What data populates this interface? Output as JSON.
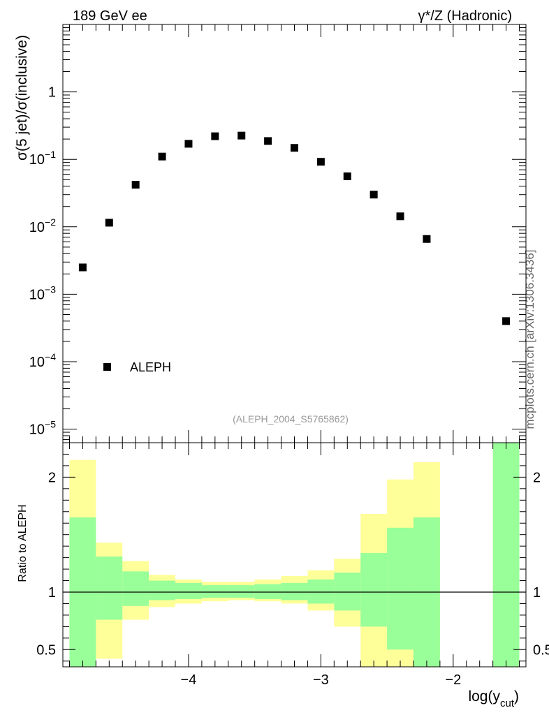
{
  "header": {
    "energy_label": "189 GeV ee",
    "process_label": "γ*/Z (Hadronic)"
  },
  "side_label": "mcplots.cern.ch [arXiv:1306.3436]",
  "chart_data": [
    {
      "type": "scatter",
      "panel": "main",
      "ylabel": "σ(5 jet)/σ(inclusive)",
      "yscale": "log",
      "ylim": [
        6.3e-06,
        10
      ],
      "xlim": [
        -4.95,
        -1.45
      ],
      "yticks": [
        {
          "value": 1,
          "base": "1",
          "exp": ""
        },
        {
          "value": 0.1,
          "base": "10",
          "exp": "−1"
        },
        {
          "value": 0.01,
          "base": "10",
          "exp": "−2"
        },
        {
          "value": 0.001,
          "base": "10",
          "exp": "−3"
        },
        {
          "value": 0.0001,
          "base": "10",
          "exp": "−4"
        },
        {
          "value": 1e-05,
          "base": "10",
          "exp": "−5"
        }
      ],
      "series": [
        {
          "name": "ALEPH",
          "marker": "square",
          "color": "#000000",
          "x": [
            -4.8,
            -4.6,
            -4.4,
            -4.2,
            -4.0,
            -3.8,
            -3.6,
            -3.4,
            -3.2,
            -3.0,
            -2.8,
            -2.6,
            -2.4,
            -2.2,
            -1.6
          ],
          "y": [
            0.0025,
            0.0115,
            0.042,
            0.11,
            0.17,
            0.22,
            0.225,
            0.187,
            0.148,
            0.092,
            0.056,
            0.03,
            0.0143,
            0.0066,
            0.0004
          ]
        }
      ],
      "legend": {
        "entries": [
          "ALEPH"
        ],
        "position": "bottom-left"
      },
      "annotation": "(ALEPH_2004_S5765862)"
    },
    {
      "type": "area",
      "panel": "ratio",
      "ylabel": "Ratio to ALEPH",
      "xlabel": "log(y",
      "xlabel_sub": "cut",
      "xlabel_close": ")",
      "ylim": [
        0.35,
        2.3
      ],
      "xlim": [
        -4.95,
        -1.45
      ],
      "yticks": [
        0.5,
        1,
        2
      ],
      "ytick_labels": [
        "0.5",
        "1",
        "2"
      ],
      "xticks": [
        -4,
        -3,
        -2
      ],
      "xtick_labels": [
        "−4",
        "−3",
        "−2"
      ],
      "reference_line": 1,
      "bin_edges": [
        -4.9,
        -4.7,
        -4.5,
        -4.3,
        -4.1,
        -3.9,
        -3.7,
        -3.5,
        -3.3,
        -3.1,
        -2.9,
        -2.7,
        -2.5,
        -2.3,
        -2.1,
        -1.7,
        -1.5
      ],
      "band_colors": {
        "total": "#ffff99",
        "stat": "#99ff99"
      },
      "total_band": {
        "upper": [
          2.15,
          1.43,
          1.27,
          1.15,
          1.11,
          1.09,
          1.09,
          1.11,
          1.14,
          1.19,
          1.29,
          1.68,
          1.98,
          2.13,
          null,
          2.5
        ],
        "lower": [
          0.35,
          0.42,
          0.76,
          0.87,
          0.9,
          0.92,
          0.93,
          0.92,
          0.9,
          0.84,
          0.7,
          0.35,
          0.35,
          0.35,
          null,
          0.35
        ]
      },
      "stat_band": {
        "upper": [
          1.65,
          1.31,
          1.18,
          1.1,
          1.08,
          1.06,
          1.06,
          1.07,
          1.08,
          1.11,
          1.17,
          1.34,
          1.56,
          1.65,
          null,
          2.5
        ],
        "lower": [
          0.35,
          0.76,
          0.88,
          0.93,
          0.94,
          0.95,
          0.95,
          0.94,
          0.93,
          0.9,
          0.84,
          0.7,
          0.5,
          0.35,
          null,
          0.35
        ]
      }
    }
  ]
}
